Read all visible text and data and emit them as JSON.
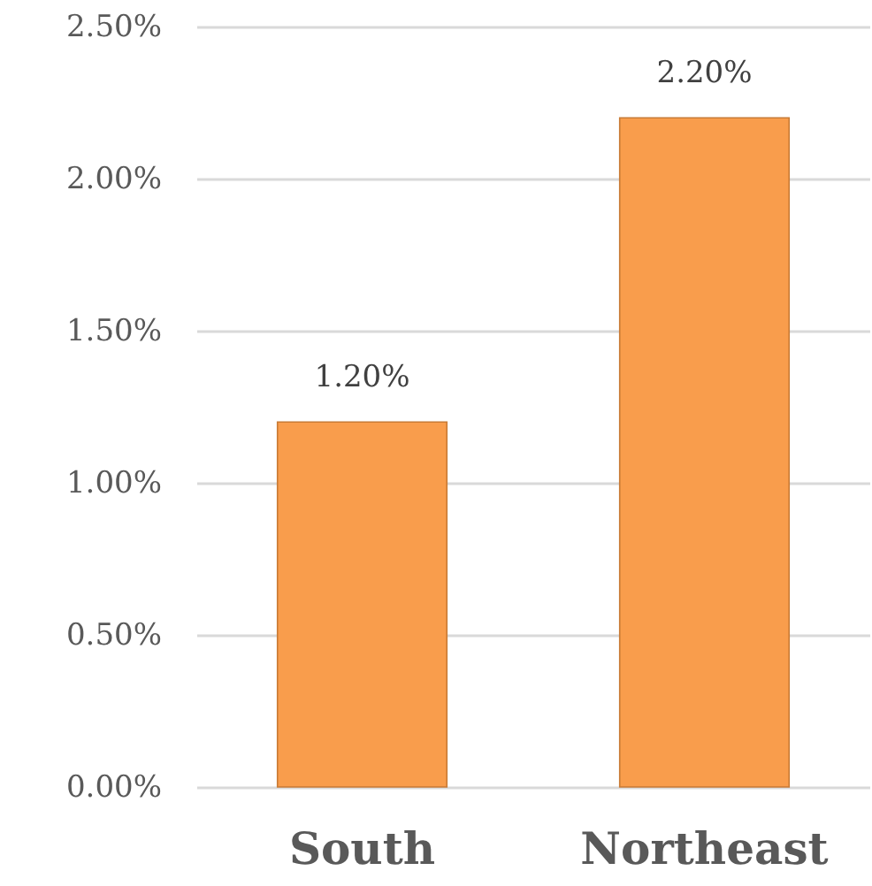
{
  "chart_data": {
    "type": "bar",
    "categories": [
      "South",
      "Northeast"
    ],
    "values": [
      1.2,
      2.2
    ],
    "value_labels": [
      "1.20%",
      "2.20%"
    ],
    "color": "#f99d4c",
    "ylim": [
      0,
      2.5
    ],
    "yticks": [
      {
        "value": 0,
        "label": "0.00%"
      },
      {
        "value": 0.5,
        "label": "0.50%"
      },
      {
        "value": 1,
        "label": "1.00%"
      },
      {
        "value": 1.5,
        "label": "1.50%"
      },
      {
        "value": 2,
        "label": "2.00%"
      },
      {
        "value": 2.5,
        "label": "2.50%"
      }
    ],
    "grid": true
  }
}
